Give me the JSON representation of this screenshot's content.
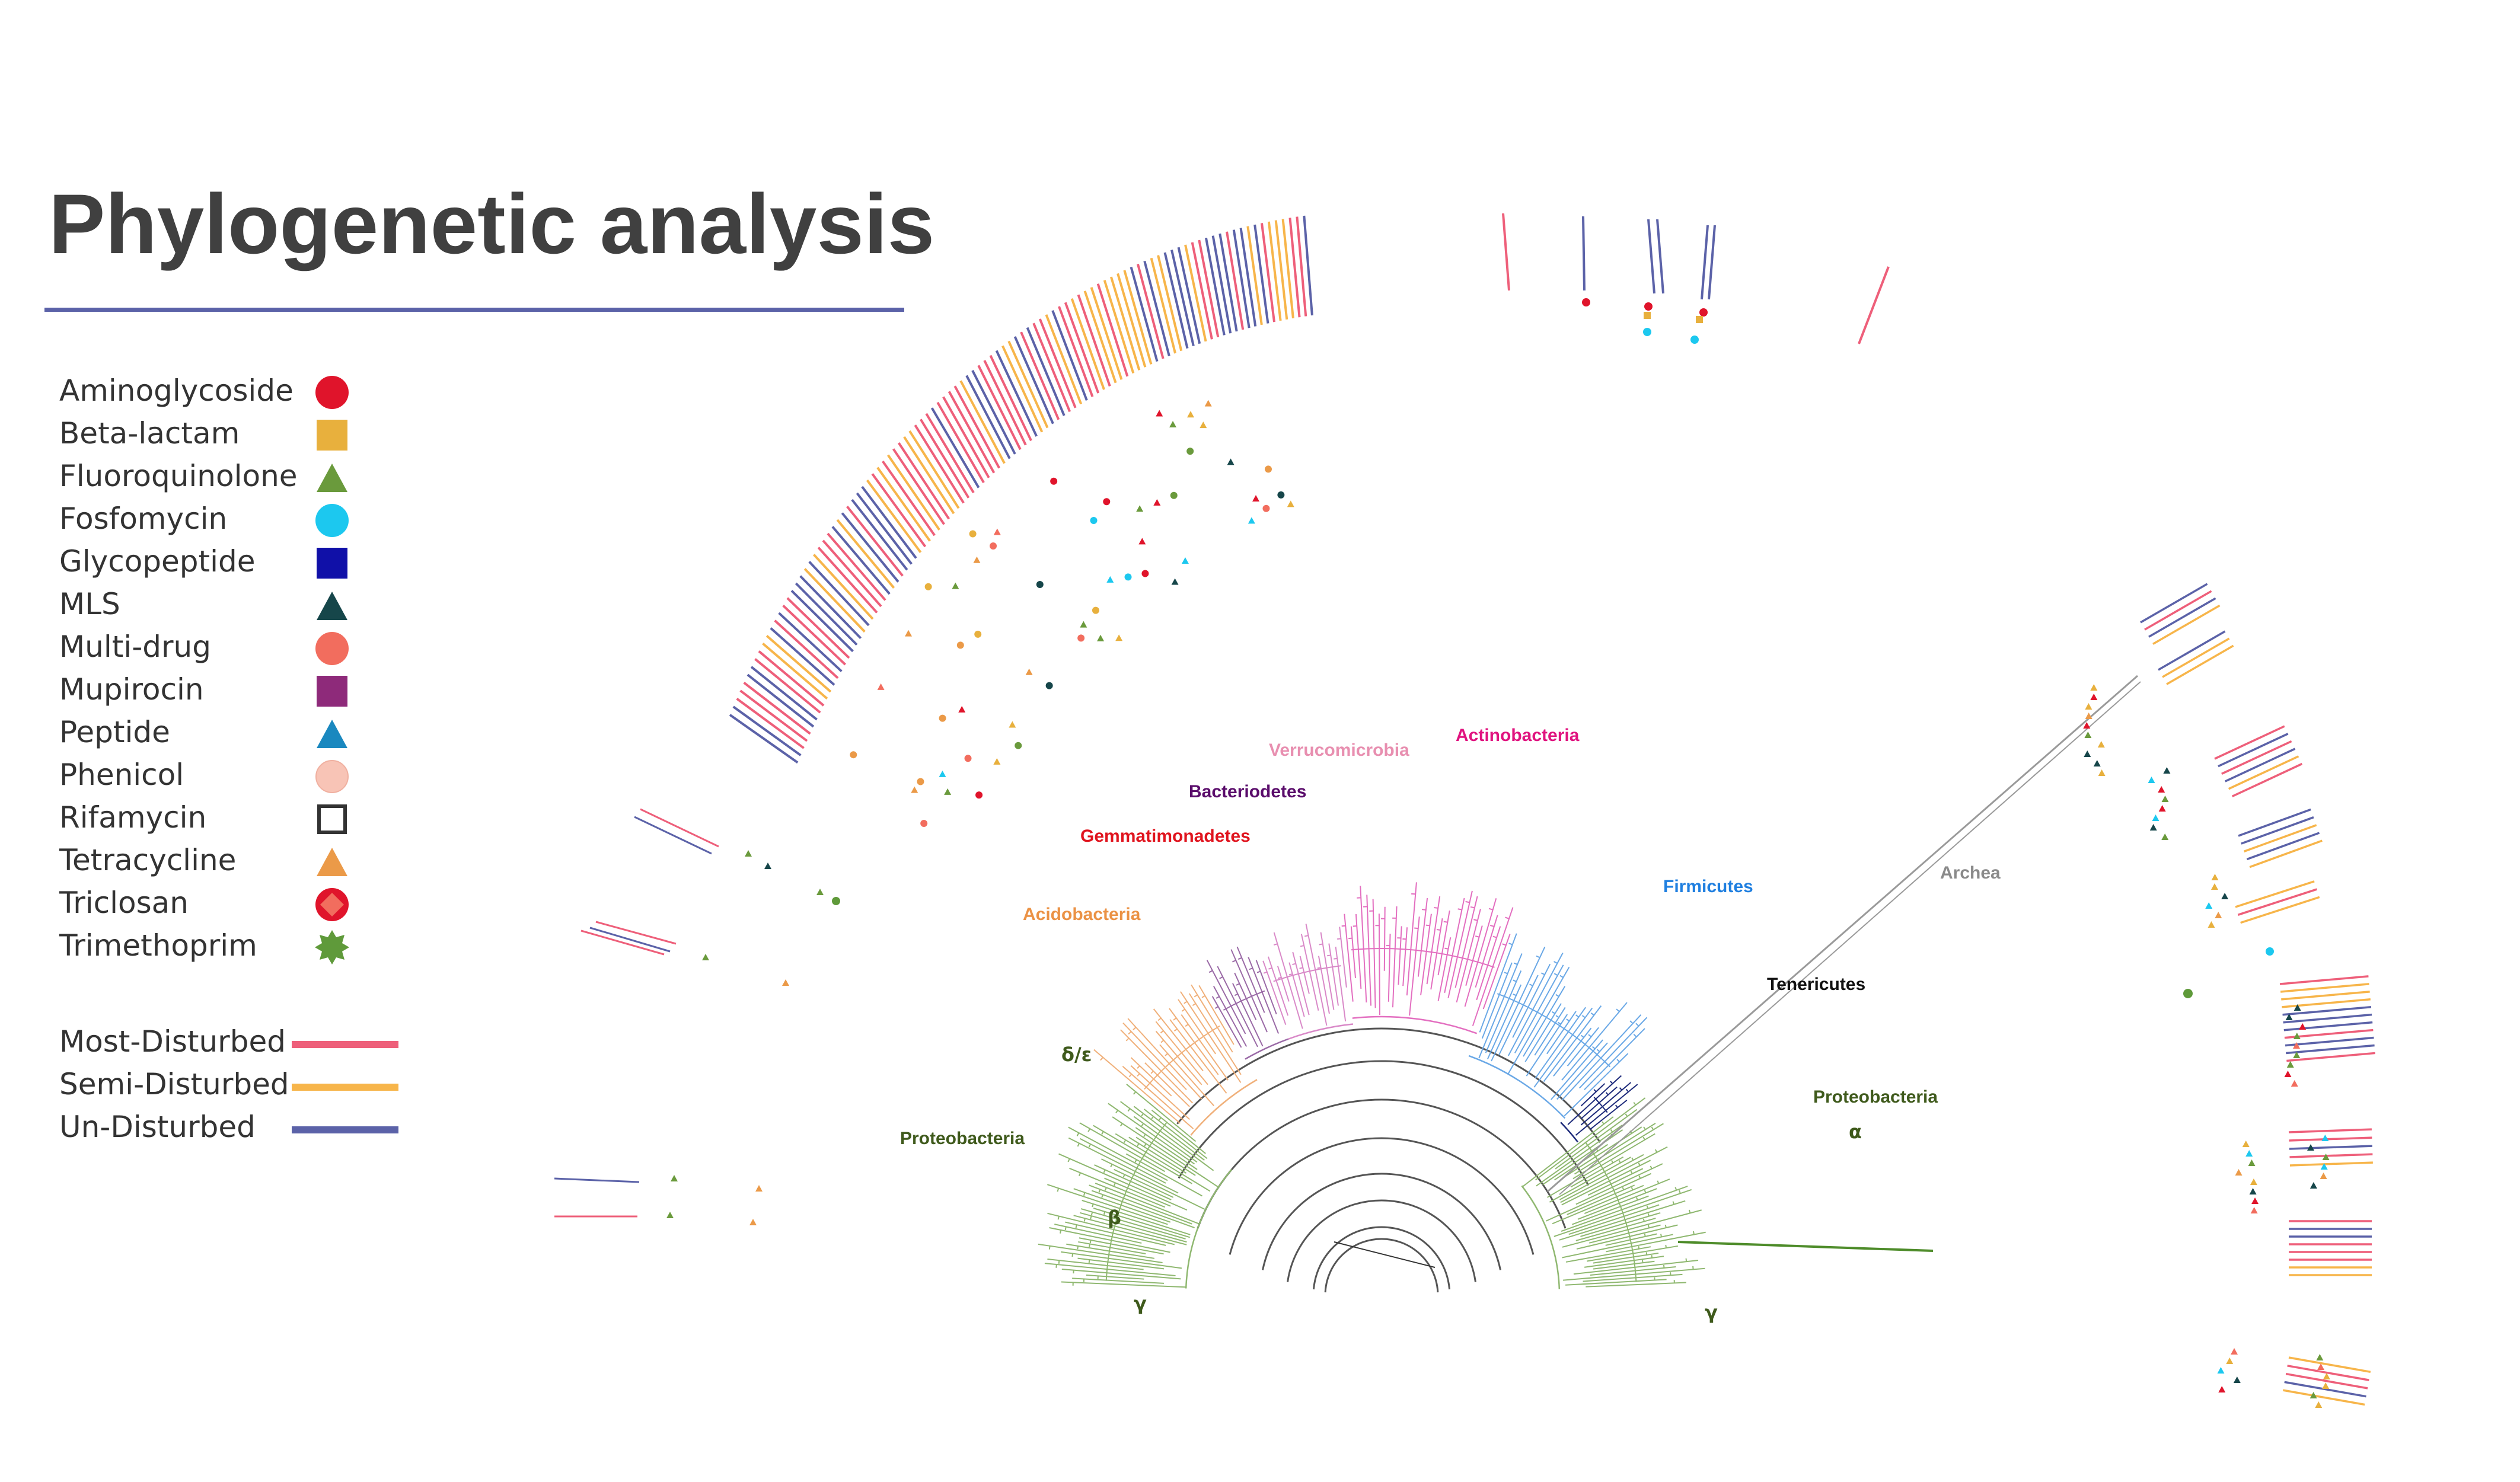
{
  "title": "Phylogenetic analysis",
  "legend": {
    "antibiotic_classes": [
      {
        "label": "Aminoglycoside",
        "shape": "circle",
        "color": "#e0142b"
      },
      {
        "label": "Beta-lactam",
        "shape": "square",
        "color": "#e8b03d"
      },
      {
        "label": "Fluoroquinolone",
        "shape": "triangle",
        "color": "#6a9a3c"
      },
      {
        "label": "Fosfomycin",
        "shape": "circle",
        "color": "#1cc8ef"
      },
      {
        "label": "Glycopeptide",
        "shape": "square",
        "color": "#1010a8"
      },
      {
        "label": "MLS",
        "shape": "triangle",
        "color": "#16464a"
      },
      {
        "label": "Multi-drug",
        "shape": "circle",
        "color": "#f26d5e"
      },
      {
        "label": "Mupirocin",
        "shape": "square",
        "color": "#8e2a7a"
      },
      {
        "label": "Peptide",
        "shape": "triangle",
        "color": "#1a88bf"
      },
      {
        "label": "Phenicol",
        "shape": "circle",
        "color": "#f8c4b6"
      },
      {
        "label": "Rifamycin",
        "shape": "square-outline",
        "color": "#333333"
      },
      {
        "label": "Tetracycline",
        "shape": "triangle",
        "color": "#eb9a48"
      },
      {
        "label": "Triclosan",
        "shape": "circle-diamond",
        "color": "#e0142b"
      },
      {
        "label": "Trimethoprim",
        "shape": "star",
        "color": "#5f9a3a"
      }
    ],
    "disturbance": [
      {
        "label": "Most-Disturbed",
        "color": "#ee5f7a"
      },
      {
        "label": "Semi-Disturbed",
        "color": "#f7b54a"
      },
      {
        "label": "Un-Disturbed",
        "color": "#5b62a8"
      }
    ]
  },
  "clade_labels": [
    {
      "label": "Verrucomicrobia",
      "color": "#e88fb0"
    },
    {
      "label": "Actinobacteria",
      "color": "#e0137f"
    },
    {
      "label": "Bacteriodetes",
      "color": "#5a0c6b"
    },
    {
      "label": "Gemmatimonadetes",
      "color": "#e0141e"
    },
    {
      "label": "Acidobacteria",
      "color": "#eb9245"
    },
    {
      "label": "Firmicutes",
      "color": "#1f7fe0"
    },
    {
      "label": "Archea",
      "color": "#8a8a8a"
    },
    {
      "label": "Tenericutes",
      "color": "#111111"
    },
    {
      "label": "δ/ε",
      "color": "#3f5a1c"
    },
    {
      "label": "Proteobacteria",
      "color": "#3f5a1c"
    },
    {
      "label": "Proteobacteria",
      "color": "#3f5a1c"
    },
    {
      "label": "α",
      "color": "#3f5a1c"
    },
    {
      "label": "β",
      "color": "#3f5a1c"
    },
    {
      "label": "γ",
      "color": "#3f5a1c"
    },
    {
      "label": "γ",
      "color": "#3f5a1c"
    }
  ],
  "branch_colors": {
    "proteobacteria": "#8fb870",
    "acidobacteria": "#f0b07a",
    "bacteroidetes": "#9a6aa6",
    "verrucomicrobia": "#d989c8",
    "actinobacteria": "#e36fc0",
    "firmicutes": "#6aa8e6",
    "tenericutes": "#1d2a7a",
    "archaea": "#9a9a9a",
    "backbone": "#555555"
  }
}
